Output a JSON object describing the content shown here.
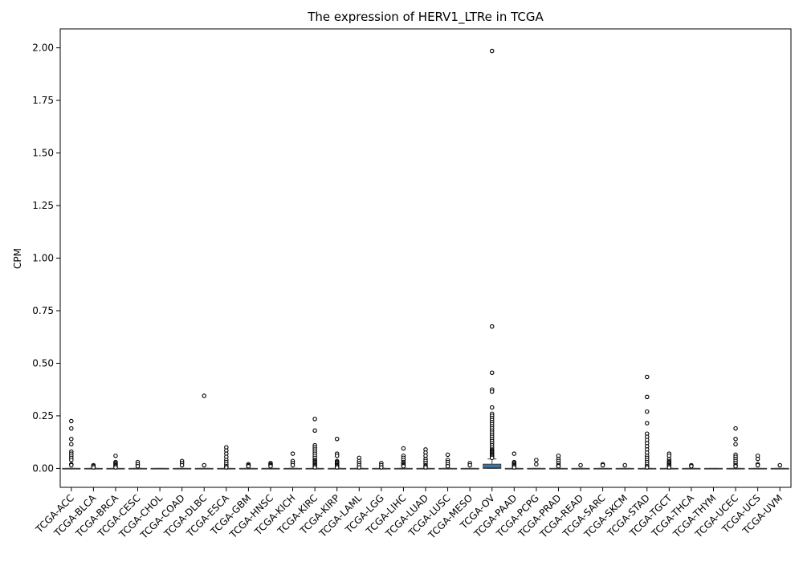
{
  "chart_data": {
    "type": "box",
    "title": "The expression of HERV1_LTRe in TCGA",
    "xlabel": "",
    "ylabel": "CPM",
    "ylim": [
      -0.09,
      2.09
    ],
    "yticks": [
      "0.00",
      "0.25",
      "0.50",
      "0.75",
      "1.00",
      "1.25",
      "1.50",
      "1.75",
      "2.00"
    ],
    "grid": false,
    "box_color": "#3a75a8",
    "categories": [
      "TCGA-ACC",
      "TCGA-BLCA",
      "TCGA-BRCA",
      "TCGA-CESC",
      "TCGA-CHOL",
      "TCGA-COAD",
      "TCGA-DLBC",
      "TCGA-ESCA",
      "TCGA-GBM",
      "TCGA-HNSC",
      "TCGA-KICH",
      "TCGA-KIRC",
      "TCGA-KIRP",
      "TCGA-LAML",
      "TCGA-LGG",
      "TCGA-LIHC",
      "TCGA-LUAD",
      "TCGA-LUSC",
      "TCGA-MESO",
      "TCGA-OV",
      "TCGA-PAAD",
      "TCGA-PCPG",
      "TCGA-PRAD",
      "TCGA-READ",
      "TCGA-SARC",
      "TCGA-SKCM",
      "TCGA-STAD",
      "TCGA-TGCT",
      "TCGA-THCA",
      "TCGA-THYM",
      "TCGA-UCEC",
      "TCGA-UCS",
      "TCGA-UVM"
    ],
    "boxes": [
      {
        "q1": 0,
        "median": 0,
        "q3": 0,
        "whisker_low": 0,
        "whisker_high": 0,
        "outliers": [
          0.225,
          0.19,
          0.14,
          0.115,
          0.08,
          0.07,
          0.06,
          0.05,
          0.04,
          0.02,
          0.015
        ]
      },
      {
        "q1": 0,
        "median": 0,
        "q3": 0,
        "whisker_low": 0,
        "whisker_high": 0,
        "outliers": [
          0.015,
          0.01,
          0.005
        ]
      },
      {
        "q1": 0,
        "median": 0,
        "q3": 0,
        "whisker_low": 0,
        "whisker_high": 0,
        "outliers": [
          0.06,
          0.03,
          0.025,
          0.02,
          0.015,
          0.01,
          0.005
        ]
      },
      {
        "q1": 0,
        "median": 0,
        "q3": 0,
        "whisker_low": 0,
        "whisker_high": 0,
        "outliers": [
          0.03,
          0.02,
          0.01
        ]
      },
      {
        "q1": 0,
        "median": 0,
        "q3": 0,
        "whisker_low": 0,
        "whisker_high": 0,
        "outliers": []
      },
      {
        "q1": 0,
        "median": 0,
        "q3": 0,
        "whisker_low": 0,
        "whisker_high": 0,
        "outliers": [
          0.035,
          0.025,
          0.015
        ]
      },
      {
        "q1": 0,
        "median": 0,
        "q3": 0,
        "whisker_low": 0,
        "whisker_high": 0,
        "outliers": [
          0.345,
          0.015
        ]
      },
      {
        "q1": 0,
        "median": 0,
        "q3": 0,
        "whisker_low": 0,
        "whisker_high": 0,
        "outliers": [
          0.1,
          0.085,
          0.07,
          0.055,
          0.04,
          0.03,
          0.02,
          0.01,
          0.005
        ]
      },
      {
        "q1": 0,
        "median": 0,
        "q3": 0,
        "whisker_low": 0,
        "whisker_high": 0,
        "outliers": [
          0.02,
          0.015,
          0.01
        ]
      },
      {
        "q1": 0,
        "median": 0,
        "q3": 0,
        "whisker_low": 0,
        "whisker_high": 0,
        "outliers": [
          0.025,
          0.02,
          0.015,
          0.01
        ]
      },
      {
        "q1": 0,
        "median": 0,
        "q3": 0,
        "whisker_low": 0,
        "whisker_high": 0,
        "outliers": [
          0.07,
          0.035,
          0.025,
          0.015
        ]
      },
      {
        "q1": 0,
        "median": 0,
        "q3": 0,
        "whisker_low": 0,
        "whisker_high": 0,
        "outliers": [
          0.235,
          0.18,
          0.11,
          0.1,
          0.09,
          0.08,
          0.07,
          0.06,
          0.05,
          0.04,
          0.035,
          0.03,
          0.025,
          0.02,
          0.015,
          0.01,
          0.005
        ]
      },
      {
        "q1": 0,
        "median": 0,
        "q3": 0,
        "whisker_low": 0,
        "whisker_high": 0,
        "outliers": [
          0.14,
          0.07,
          0.06,
          0.035,
          0.03,
          0.025,
          0.02,
          0.015,
          0.01,
          0.005
        ]
      },
      {
        "q1": 0,
        "median": 0,
        "q3": 0,
        "whisker_low": 0,
        "whisker_high": 0,
        "outliers": [
          0.05,
          0.035,
          0.025,
          0.015,
          0.005
        ]
      },
      {
        "q1": 0,
        "median": 0,
        "q3": 0,
        "whisker_low": 0,
        "whisker_high": 0,
        "outliers": [
          0.025,
          0.015,
          0.005
        ]
      },
      {
        "q1": 0,
        "median": 0,
        "q3": 0,
        "whisker_low": 0,
        "whisker_high": 0,
        "outliers": [
          0.095,
          0.06,
          0.05,
          0.04,
          0.03,
          0.025,
          0.02,
          0.015,
          0.01
        ]
      },
      {
        "q1": 0,
        "median": 0,
        "q3": 0,
        "whisker_low": 0,
        "whisker_high": 0,
        "outliers": [
          0.09,
          0.075,
          0.06,
          0.045,
          0.035,
          0.025,
          0.015,
          0.01,
          0.005
        ]
      },
      {
        "q1": 0,
        "median": 0,
        "q3": 0,
        "whisker_low": 0,
        "whisker_high": 0,
        "outliers": [
          0.065,
          0.04,
          0.03,
          0.02,
          0.01
        ]
      },
      {
        "q1": 0,
        "median": 0,
        "q3": 0,
        "whisker_low": 0,
        "whisker_high": 0,
        "outliers": [
          0.025,
          0.015
        ]
      },
      {
        "q1": 0,
        "median": 0.003,
        "q3": 0.02,
        "whisker_low": 0,
        "whisker_high": 0.045,
        "outliers": [
          1.985,
          0.675,
          0.455,
          0.375,
          0.365,
          0.29,
          0.26,
          0.25,
          0.24,
          0.23,
          0.22,
          0.21,
          0.2,
          0.19,
          0.18,
          0.17,
          0.16,
          0.15,
          0.14,
          0.13,
          0.12,
          0.11,
          0.1,
          0.09,
          0.085,
          0.08,
          0.075,
          0.07,
          0.065,
          0.06,
          0.055,
          0.05
        ]
      },
      {
        "q1": 0,
        "median": 0,
        "q3": 0,
        "whisker_low": 0,
        "whisker_high": 0,
        "outliers": [
          0.07,
          0.03,
          0.025,
          0.02,
          0.015,
          0.01,
          0.005
        ]
      },
      {
        "q1": 0,
        "median": 0,
        "q3": 0,
        "whisker_low": 0,
        "whisker_high": 0,
        "outliers": [
          0.04,
          0.02
        ]
      },
      {
        "q1": 0,
        "median": 0,
        "q3": 0,
        "whisker_low": 0,
        "whisker_high": 0,
        "outliers": [
          0.06,
          0.045,
          0.035,
          0.025,
          0.015,
          0.01
        ]
      },
      {
        "q1": 0,
        "median": 0,
        "q3": 0,
        "whisker_low": 0,
        "whisker_high": 0,
        "outliers": [
          0.015
        ]
      },
      {
        "q1": 0,
        "median": 0,
        "q3": 0,
        "whisker_low": 0,
        "whisker_high": 0,
        "outliers": [
          0.02,
          0.015
        ]
      },
      {
        "q1": 0,
        "median": 0,
        "q3": 0,
        "whisker_low": 0,
        "whisker_high": 0,
        "outliers": [
          0.015
        ]
      },
      {
        "q1": 0,
        "median": 0,
        "q3": 0,
        "whisker_low": 0,
        "whisker_high": 0,
        "outliers": [
          0.435,
          0.34,
          0.27,
          0.215,
          0.165,
          0.15,
          0.135,
          0.12,
          0.105,
          0.09,
          0.075,
          0.06,
          0.05,
          0.04,
          0.03,
          0.02,
          0.01,
          0.005
        ]
      },
      {
        "q1": 0,
        "median": 0,
        "q3": 0,
        "whisker_low": 0,
        "whisker_high": 0,
        "outliers": [
          0.07,
          0.06,
          0.045,
          0.035,
          0.03,
          0.025,
          0.02,
          0.015,
          0.01,
          0.005
        ]
      },
      {
        "q1": 0,
        "median": 0,
        "q3": 0,
        "whisker_low": 0,
        "whisker_high": 0,
        "outliers": [
          0.015,
          0.01
        ]
      },
      {
        "q1": 0,
        "median": 0,
        "q3": 0,
        "whisker_low": 0,
        "whisker_high": 0,
        "outliers": []
      },
      {
        "q1": 0,
        "median": 0,
        "q3": 0,
        "whisker_low": 0,
        "whisker_high": 0,
        "outliers": [
          0.19,
          0.14,
          0.115,
          0.065,
          0.055,
          0.045,
          0.035,
          0.025,
          0.015,
          0.01
        ]
      },
      {
        "q1": 0,
        "median": 0,
        "q3": 0,
        "whisker_low": 0,
        "whisker_high": 0,
        "outliers": [
          0.06,
          0.045,
          0.02,
          0.015
        ]
      },
      {
        "q1": 0,
        "median": 0,
        "q3": 0,
        "whisker_low": 0,
        "whisker_high": 0,
        "outliers": [
          0.015
        ]
      }
    ]
  }
}
